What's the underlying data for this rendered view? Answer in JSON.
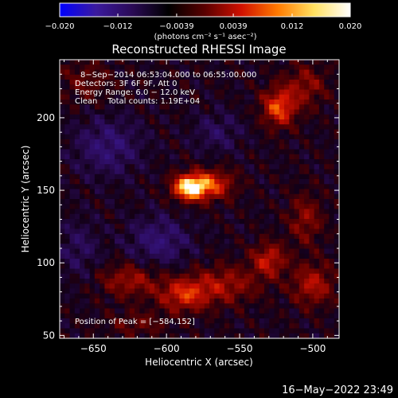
{
  "colorbar": {
    "tick_labels": [
      "−0.020",
      "−0.012",
      "−0.0039",
      "0.0039",
      "0.012",
      "0.020"
    ],
    "unit_label": "(photons cm⁻² s⁻¹ asec⁻²)",
    "range": [
      -0.02,
      0.02
    ],
    "colors": [
      "#0000ff",
      "#3b1a9e",
      "#2a0a55",
      "#000000",
      "#5a0000",
      "#d01000",
      "#ff7a00",
      "#ffe060",
      "#ffffff"
    ]
  },
  "chart_data": {
    "type": "heatmap",
    "title": "Reconstructed RHESSI Image",
    "xlabel": "Heliocentric X (arcsec)",
    "ylabel": "Heliocentric Y (arcsec)",
    "xlim": [
      -673,
      -482
    ],
    "ylim": [
      48,
      240
    ],
    "x_ticks": [
      -650,
      -600,
      -550,
      -500
    ],
    "x_tick_labels": [
      "−650",
      "−600",
      "−550",
      "−500"
    ],
    "y_ticks": [
      50,
      100,
      150,
      200
    ],
    "y_tick_labels": [
      "50",
      "100",
      "150",
      "200"
    ],
    "annotations": [
      "8−Sep−2014 06:53:04.000 to 06:55:00.000",
      "Detectors: 3F 6F 9F, Att 0",
      "Energy Range: 6.0 − 12.0 keV",
      "Clean    Total counts: 1.19E+04"
    ],
    "peak_label": "Position of Peak = [−584,152]",
    "peak": [
      -584,
      152
    ],
    "sources": [
      {
        "x": -584,
        "y": 152,
        "amp": 0.02,
        "sx": 8,
        "sy": 6
      },
      {
        "x": -568,
        "y": 154,
        "amp": 0.01,
        "sx": 10,
        "sy": 7
      },
      {
        "x": -523,
        "y": 207,
        "amp": 0.012,
        "sx": 8,
        "sy": 9
      },
      {
        "x": -505,
        "y": 222,
        "amp": 0.006,
        "sx": 10,
        "sy": 10
      },
      {
        "x": -530,
        "y": 102,
        "amp": 0.009,
        "sx": 8,
        "sy": 8
      },
      {
        "x": -588,
        "y": 78,
        "amp": 0.01,
        "sx": 12,
        "sy": 8
      },
      {
        "x": -560,
        "y": 85,
        "amp": 0.007,
        "sx": 16,
        "sy": 9
      },
      {
        "x": -625,
        "y": 88,
        "amp": 0.007,
        "sx": 14,
        "sy": 8
      },
      {
        "x": -500,
        "y": 85,
        "amp": 0.008,
        "sx": 10,
        "sy": 10
      },
      {
        "x": -505,
        "y": 130,
        "amp": 0.006,
        "sx": 8,
        "sy": 12
      },
      {
        "x": -655,
        "y": 225,
        "amp": 0.004,
        "sx": 12,
        "sy": 10
      },
      {
        "x": -620,
        "y": 58,
        "amp": 0.004,
        "sx": 14,
        "sy": 6
      },
      {
        "x": -640,
        "y": 180,
        "amp": -0.006,
        "sx": 16,
        "sy": 14
      },
      {
        "x": -605,
        "y": 115,
        "amp": -0.006,
        "sx": 15,
        "sy": 12
      },
      {
        "x": -565,
        "y": 190,
        "amp": -0.004,
        "sx": 12,
        "sy": 10
      },
      {
        "x": -660,
        "y": 110,
        "amp": -0.004,
        "sx": 10,
        "sy": 14
      }
    ]
  },
  "timestamp": "16−May−2022 23:49"
}
